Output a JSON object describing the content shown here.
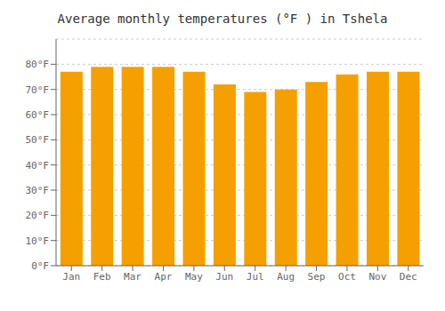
{
  "chart_data": {
    "type": "bar",
    "title": "Average monthly temperatures (°F ) in Tshela",
    "categories": [
      "Jan",
      "Feb",
      "Mar",
      "Apr",
      "May",
      "Jun",
      "Jul",
      "Aug",
      "Sep",
      "Oct",
      "Nov",
      "Dec"
    ],
    "values": [
      77,
      79,
      79,
      79,
      77,
      72,
      69,
      70,
      73,
      76,
      77,
      77
    ],
    "color": "#F5A000",
    "ylim": [
      0,
      90
    ],
    "yticks": [
      {
        "value": 0,
        "label": "0°F"
      },
      {
        "value": 10,
        "label": "10°F"
      },
      {
        "value": 20,
        "label": "20°F"
      },
      {
        "value": 30,
        "label": "30°F"
      },
      {
        "value": 40,
        "label": "40°F"
      },
      {
        "value": 50,
        "label": "50°F"
      },
      {
        "value": 60,
        "label": "60°F"
      },
      {
        "value": 70,
        "label": "70°F"
      },
      {
        "value": 80,
        "label": "80°F"
      }
    ],
    "grid": true
  }
}
